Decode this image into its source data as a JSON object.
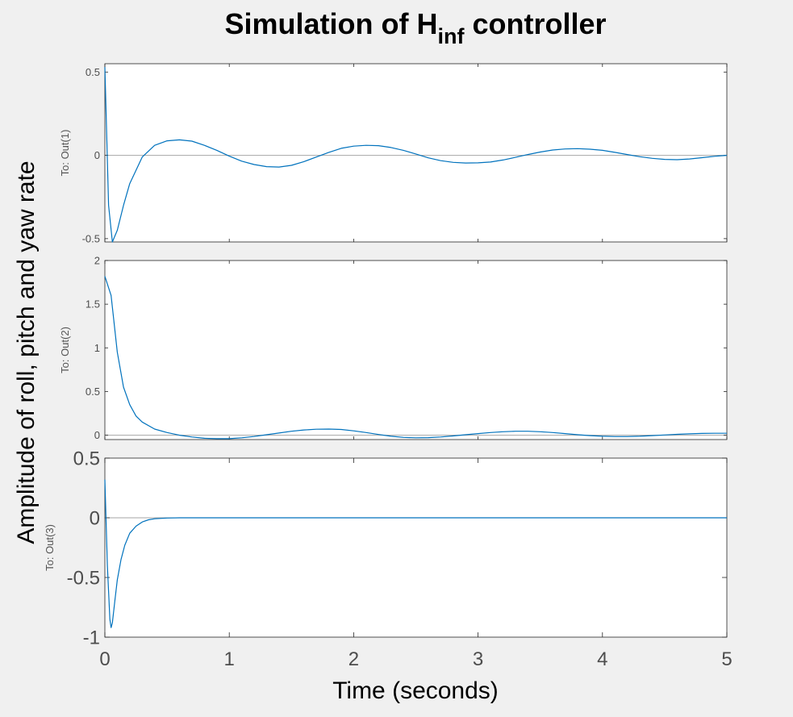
{
  "figure": {
    "title_main": "Simulation of H",
    "title_sub": "inf",
    "title_end": " controller",
    "ylabel": "Amplitude of roll, pitch and yaw rate",
    "xlabel": "Time (seconds)"
  },
  "chart_data": {
    "type": "line",
    "xlim": [
      0,
      5
    ],
    "x_ticks": [
      "0",
      "1",
      "2",
      "3",
      "4",
      "5"
    ],
    "grid": false,
    "line_color": "#0072bd",
    "zero_line_color": "#a6a6a6",
    "subplots": [
      {
        "name": "To: Out(1)",
        "ylim": [
          -0.52,
          0.55
        ],
        "y_ticks": [
          {
            "v": 0.5,
            "label": "0.5"
          },
          {
            "v": 0,
            "label": "0"
          },
          {
            "v": -0.5,
            "label": "-0.5"
          }
        ],
        "x": [
          0,
          0.03,
          0.06,
          0.1,
          0.15,
          0.2,
          0.3,
          0.4,
          0.5,
          0.6,
          0.7,
          0.8,
          0.9,
          1.0,
          1.1,
          1.2,
          1.3,
          1.4,
          1.5,
          1.6,
          1.7,
          1.8,
          1.9,
          2.0,
          2.1,
          2.2,
          2.3,
          2.4,
          2.5,
          2.6,
          2.7,
          2.8,
          2.9,
          3.0,
          3.1,
          3.2,
          3.3,
          3.4,
          3.5,
          3.6,
          3.7,
          3.8,
          3.9,
          4.0,
          4.1,
          4.2,
          4.3,
          4.4,
          4.5,
          4.6,
          4.7,
          4.8,
          4.9,
          5.0
        ],
        "y": [
          0.53,
          -0.3,
          -0.52,
          -0.45,
          -0.3,
          -0.17,
          -0.01,
          0.06,
          0.087,
          0.093,
          0.085,
          0.06,
          0.03,
          -0.005,
          -0.035,
          -0.055,
          -0.068,
          -0.07,
          -0.06,
          -0.038,
          -0.01,
          0.018,
          0.042,
          0.055,
          0.06,
          0.058,
          0.047,
          0.03,
          0.008,
          -0.015,
          -0.032,
          -0.042,
          -0.046,
          -0.045,
          -0.04,
          -0.028,
          -0.012,
          0.005,
          0.02,
          0.032,
          0.038,
          0.04,
          0.037,
          0.03,
          0.018,
          0.005,
          -0.008,
          -0.018,
          -0.024,
          -0.026,
          -0.022,
          -0.014,
          -0.006,
          0.0
        ]
      },
      {
        "name": "To: Out(2)",
        "ylim": [
          -0.05,
          2.0
        ],
        "y_ticks": [
          {
            "v": 2,
            "label": "2"
          },
          {
            "v": 1.5,
            "label": "1.5"
          },
          {
            "v": 1,
            "label": "1"
          },
          {
            "v": 0.5,
            "label": "0.5"
          },
          {
            "v": 0,
            "label": "0"
          }
        ],
        "x": [
          0,
          0.05,
          0.1,
          0.15,
          0.2,
          0.25,
          0.3,
          0.4,
          0.5,
          0.6,
          0.7,
          0.8,
          0.9,
          1.0,
          1.1,
          1.2,
          1.3,
          1.4,
          1.5,
          1.6,
          1.7,
          1.8,
          1.9,
          2.0,
          2.1,
          2.2,
          2.3,
          2.4,
          2.5,
          2.6,
          2.7,
          2.8,
          2.9,
          3.0,
          3.1,
          3.2,
          3.3,
          3.4,
          3.5,
          3.6,
          3.7,
          3.8,
          3.9,
          4.0,
          4.1,
          4.2,
          4.3,
          4.4,
          4.5,
          4.6,
          4.7,
          4.8,
          4.9,
          5.0
        ],
        "y": [
          1.82,
          1.6,
          0.95,
          0.55,
          0.35,
          0.22,
          0.15,
          0.07,
          0.03,
          0.0,
          -0.02,
          -0.035,
          -0.04,
          -0.04,
          -0.03,
          -0.015,
          0.005,
          0.025,
          0.045,
          0.06,
          0.068,
          0.07,
          0.065,
          0.05,
          0.03,
          0.008,
          -0.012,
          -0.025,
          -0.03,
          -0.028,
          -0.02,
          -0.008,
          0.005,
          0.018,
          0.03,
          0.04,
          0.045,
          0.045,
          0.04,
          0.03,
          0.018,
          0.005,
          -0.005,
          -0.012,
          -0.016,
          -0.016,
          -0.012,
          -0.005,
          0.003,
          0.01,
          0.016,
          0.02,
          0.022,
          0.022
        ]
      },
      {
        "name": "To: Out(3)",
        "ylim": [
          -1,
          0.5
        ],
        "y_ticks": [
          {
            "v": 0.5,
            "label": "0.5"
          },
          {
            "v": 0,
            "label": "0"
          },
          {
            "v": -0.5,
            "label": "-0.5"
          },
          {
            "v": -1,
            "label": "-1"
          }
        ],
        "x": [
          0,
          0.02,
          0.04,
          0.05,
          0.06,
          0.08,
          0.1,
          0.13,
          0.16,
          0.2,
          0.25,
          0.3,
          0.35,
          0.4,
          0.5,
          0.6,
          0.8,
          1.0,
          1.5,
          2,
          3,
          4,
          5
        ],
        "y": [
          0.32,
          -0.4,
          -0.85,
          -0.92,
          -0.88,
          -0.7,
          -0.52,
          -0.35,
          -0.23,
          -0.13,
          -0.07,
          -0.035,
          -0.017,
          -0.008,
          -0.002,
          0,
          0,
          0,
          0,
          0,
          0,
          0,
          0
        ]
      }
    ]
  }
}
